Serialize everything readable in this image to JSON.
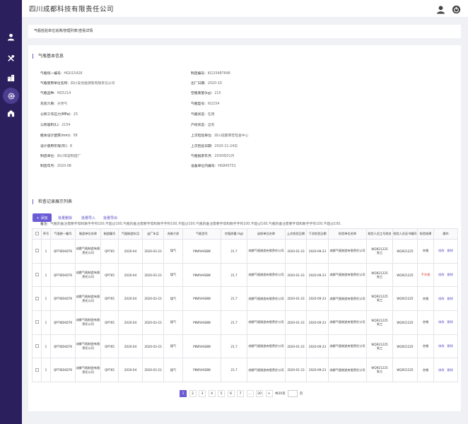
{
  "header": {
    "company": "四川成都科技有限责任公司"
  },
  "breadcrumb": "气瓶检验单位追溯/管理列表/查看详情",
  "basic": {
    "title": "气瓶基本信息",
    "left": [
      {
        "label": "气瓶统一编号:",
        "value": "HGU15426"
      },
      {
        "label": "气瓶使用单位名称:",
        "value": "四川安创能源管有限责任公司"
      },
      {
        "label": "气瓶品种:",
        "value": "HG5214"
      },
      {
        "label": "充装介质:",
        "value": "天然气"
      },
      {
        "label": "公称工作压力(MPa):",
        "value": "25"
      },
      {
        "label": "公称容积(L):",
        "value": "2154"
      },
      {
        "label": "瓶体设计壁厚(mm):",
        "value": "58"
      },
      {
        "label": "设计使用年限(年):",
        "value": "8"
      },
      {
        "label": "制造单位:",
        "value": "四川军庭制造厂"
      },
      {
        "label": "制造年月:",
        "value": "2020-08"
      }
    ],
    "right": [
      {
        "label": "制造编号:",
        "value": "KI125487648"
      },
      {
        "label": "出厂日期:",
        "value": "2020-10"
      },
      {
        "label": "空瓶质量(kg):",
        "value": "215"
      },
      {
        "label": "气瓶型号:",
        "value": "I02154"
      },
      {
        "label": "气瓶状态:",
        "value": "在用"
      },
      {
        "label": "产权状态:",
        "value": "自有"
      },
      {
        "label": "上次检验单位:",
        "value": "四川成都厚宏检查中心"
      },
      {
        "label": "上次检验日期:",
        "value": "2020-11-24日"
      },
      {
        "label": "气瓶报废年月:",
        "value": "2030年01月"
      },
      {
        "label": "设备单位内编号:",
        "value": "HG845751"
      }
    ],
    "note_label": "备注:",
    "note": "气瓶的备注需要字母和数字字符100,不超过100,气瓶的备注需要字母和数字字符100,不超过100,气瓶的备注需要字母和数字字符100,不超过100,气瓶的备注需要字母和数字字符100,不超过100."
  },
  "records": {
    "title": "检查记录展示列表",
    "add_label": "+ 添加",
    "batch_delete": "批量删除",
    "batch_import": "批量导入",
    "batch_export": "批量导出",
    "columns": [
      "序号",
      "气瓶统一编号",
      "制造单位名称",
      "制造编号",
      "气瓶制造年月",
      "出厂年月",
      "充装介质",
      "气瓶型号",
      "空瓶质量 (kg)",
      "送检单位名称",
      "上次检验日期",
      "下次检验日期",
      "检验单位名称",
      "检验人员工号姓名",
      "检验人员证书编号",
      "检验结果",
      "操作"
    ],
    "edit_label": "修改",
    "delete_label": "删除",
    "rows": [
      {
        "no": "1",
        "code": "QP76DHD76",
        "maker": "成都气瓶制造有限责任公司",
        "mno": "QP765",
        "mdate": "2020-04",
        "fdate": "2020-03-23",
        "medium": "煤气",
        "model": "P8WVHSBW",
        "mass": "21.7",
        "sender": "成都气瓶制造有限责任公司",
        "last": "2020-01-23",
        "next": "2020-09-23",
        "inspector": "成都气瓶制造有限责任公司",
        "staff_id": "WQ921225",
        "staff_name": "张三",
        "cert": "WQ921225",
        "result": "合格",
        "bad": false
      },
      {
        "no": "1",
        "code": "QP76DHD76",
        "maker": "成都气瓶制造有限责任公司",
        "mno": "QP765",
        "mdate": "2020-04",
        "fdate": "2020-03-23",
        "medium": "煤气",
        "model": "P8WVHSBW",
        "mass": "21.7",
        "sender": "成都气瓶制造有限责任公司",
        "last": "2020-01-23",
        "next": "2020-09-23",
        "inspector": "成都气瓶制造有限责任公司",
        "staff_id": "WQ921225",
        "staff_name": "张三",
        "cert": "WQ921225",
        "result": "不合格",
        "bad": true
      },
      {
        "no": "1",
        "code": "QP76DHD76",
        "maker": "成都气瓶制造有限责任公司",
        "mno": "QP765",
        "mdate": "2020-04",
        "fdate": "2020-03-23",
        "medium": "煤气",
        "model": "P8WVHSBW",
        "mass": "21.7",
        "sender": "成都气瓶制造有限责任公司",
        "last": "2020-01-23",
        "next": "2020-09-23",
        "inspector": "成都气瓶制造有限责任公司",
        "staff_id": "WQ921225",
        "staff_name": "张三",
        "cert": "WQ921225",
        "result": "合格",
        "bad": false
      },
      {
        "no": "1",
        "code": "QP76DHD76",
        "maker": "成都气瓶制造有限责任公司",
        "mno": "QP765",
        "mdate": "2020-04",
        "fdate": "2020-03-23",
        "medium": "煤气",
        "model": "P8WVHSBW",
        "mass": "21.7",
        "sender": "成都气瓶制造有限责任公司",
        "last": "2020-01-23",
        "next": "2020-09-23",
        "inspector": "成都气瓶制造有限责任公司",
        "staff_id": "WQ921225",
        "staff_name": "张三",
        "cert": "WQ921225",
        "result": "合格",
        "bad": false
      },
      {
        "no": "1",
        "code": "QP76DHD76",
        "maker": "成都气瓶制造有限责任公司",
        "mno": "QP765",
        "mdate": "2020-04",
        "fdate": "2020-03-23",
        "medium": "煤气",
        "model": "P8WVHSBW",
        "mass": "21.7",
        "sender": "成都气瓶制造有限责任公司",
        "last": "2020-01-23",
        "next": "2020-09-23",
        "inspector": "成都气瓶制造有限责任公司",
        "staff_id": "WQ921225",
        "staff_name": "张三",
        "cert": "WQ921225",
        "result": "合格",
        "bad": false
      },
      {
        "no": "1",
        "code": "QP76DHD76",
        "maker": "成都气瓶制造有限责任公司",
        "mno": "QP765",
        "mdate": "2020-04",
        "fdate": "2020-03-23",
        "medium": "煤气",
        "model": "P8WVHSBW",
        "mass": "21.7",
        "sender": "成都气瓶制造有限责任公司",
        "last": "2020-01-23",
        "next": "2020-09-23",
        "inspector": "成都气瓶制造有限责任公司",
        "staff_id": "WQ921225",
        "staff_name": "张三",
        "cert": "WQ921225",
        "result": "合格",
        "bad": false
      }
    ]
  },
  "pagination": {
    "pages": [
      "1",
      "2",
      "3",
      "4",
      "5",
      "6",
      "7",
      "...",
      "20"
    ],
    "next": ">",
    "total_text": "共20页",
    "page_suffix": "页"
  },
  "icons": {
    "sidebar": [
      "user-icon",
      "tools-icon",
      "building-icon",
      "gear-icon",
      "house-icon"
    ],
    "top": [
      "account-icon",
      "power-icon"
    ]
  },
  "colors": {
    "sidebar": "#2c1f5e",
    "accent": "#6b5cd6",
    "fail": "#e04040"
  }
}
